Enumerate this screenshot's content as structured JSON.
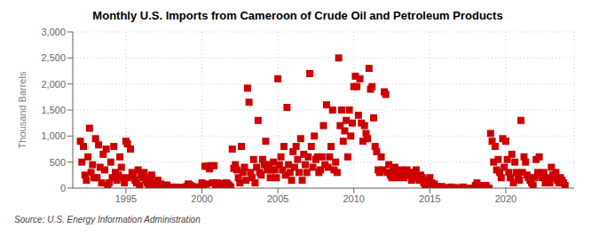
{
  "chart_data": {
    "type": "scatter",
    "title": "Monthly U.S. Imports from Cameroon of Crude Oil and Petroleum Products",
    "ylabel": "Thousand Barrels",
    "annotations": [
      "Source: U.S. Energy Information Administration"
    ],
    "color": "#CC0000",
    "marker": "square",
    "grid": true,
    "xlim": [
      1991.5,
      2024.5
    ],
    "xticks": [
      1995,
      2000,
      2005,
      2010,
      2015,
      2020
    ],
    "ylim": [
      0,
      3000
    ],
    "yticks": [
      0,
      500,
      {
        "value": 1000,
        "label": "1,000"
      },
      {
        "value": 1500,
        "label": "1,500"
      },
      {
        "value": 2000,
        "label": "2,000"
      },
      {
        "value": 2500,
        "label": "2,500"
      },
      {
        "value": 3000,
        "label": "3,000"
      }
    ],
    "x": [
      1992.0,
      1992.1,
      1992.2,
      1992.3,
      1992.4,
      1992.5,
      1992.6,
      1992.7,
      1992.8,
      1992.9,
      1993.0,
      1993.1,
      1993.2,
      1993.3,
      1993.4,
      1993.5,
      1993.6,
      1993.7,
      1993.8,
      1993.9,
      1994.0,
      1994.1,
      1994.2,
      1994.3,
      1994.4,
      1994.5,
      1994.6,
      1994.7,
      1994.8,
      1994.9,
      1995.0,
      1995.1,
      1995.2,
      1995.3,
      1995.4,
      1995.5,
      1995.6,
      1995.7,
      1995.8,
      1995.9,
      1996.0,
      1996.1,
      1996.2,
      1996.3,
      1996.4,
      1996.5,
      1996.6,
      1996.7,
      1996.8,
      1996.9,
      1997.0,
      1997.1,
      1997.2,
      1997.3,
      1997.4,
      1997.5,
      1997.6,
      1997.7,
      1997.8,
      1997.9,
      1998.0,
      1998.1,
      1998.2,
      1998.3,
      1998.4,
      1998.5,
      1998.6,
      1998.7,
      1998.8,
      1998.9,
      1999.0,
      1999.1,
      1999.2,
      1999.3,
      1999.4,
      1999.5,
      1999.6,
      1999.7,
      1999.8,
      1999.9,
      2000.0,
      2000.1,
      2000.2,
      2000.3,
      2000.4,
      2000.5,
      2000.6,
      2000.7,
      2000.8,
      2000.9,
      2001.0,
      2001.1,
      2001.2,
      2001.3,
      2001.4,
      2001.5,
      2001.6,
      2001.7,
      2001.8,
      2001.9,
      2002.0,
      2002.1,
      2002.2,
      2002.3,
      2002.4,
      2002.5,
      2002.6,
      2002.7,
      2002.8,
      2002.9,
      2003.0,
      2003.1,
      2003.2,
      2003.3,
      2003.4,
      2003.5,
      2003.6,
      2003.7,
      2003.8,
      2003.9,
      2004.0,
      2004.1,
      2004.2,
      2004.3,
      2004.4,
      2004.5,
      2004.6,
      2004.7,
      2004.8,
      2004.9,
      2005.0,
      2005.1,
      2005.2,
      2005.3,
      2005.4,
      2005.5,
      2005.6,
      2005.7,
      2005.8,
      2005.9,
      2006.0,
      2006.1,
      2006.2,
      2006.3,
      2006.4,
      2006.5,
      2006.6,
      2006.7,
      2006.8,
      2006.9,
      2007.0,
      2007.1,
      2007.2,
      2007.3,
      2007.4,
      2007.5,
      2007.6,
      2007.7,
      2007.8,
      2007.9,
      2008.0,
      2008.1,
      2008.2,
      2008.3,
      2008.4,
      2008.5,
      2008.6,
      2008.7,
      2008.8,
      2008.9,
      2009.0,
      2009.1,
      2009.2,
      2009.3,
      2009.4,
      2009.5,
      2009.6,
      2009.7,
      2009.8,
      2009.9,
      2010.0,
      2010.1,
      2010.2,
      2010.3,
      2010.4,
      2010.5,
      2010.6,
      2010.7,
      2010.8,
      2010.9,
      2011.0,
      2011.1,
      2011.2,
      2011.3,
      2011.4,
      2011.5,
      2011.6,
      2011.7,
      2011.8,
      2011.9,
      2012.0,
      2012.1,
      2012.2,
      2012.3,
      2012.4,
      2012.5,
      2012.6,
      2012.7,
      2012.8,
      2012.9,
      2013.0,
      2013.1,
      2013.2,
      2013.3,
      2013.4,
      2013.5,
      2013.6,
      2013.7,
      2013.8,
      2013.9,
      2014.0,
      2014.1,
      2014.2,
      2014.3,
      2014.4,
      2014.5,
      2014.6,
      2014.7,
      2014.8,
      2014.9,
      2015.0,
      2015.1,
      2015.2,
      2015.3,
      2015.4,
      2015.5,
      2015.6,
      2015.7,
      2015.8,
      2015.9,
      2016.0,
      2016.1,
      2016.2,
      2016.3,
      2016.4,
      2016.5,
      2016.6,
      2016.7,
      2016.8,
      2016.9,
      2017.0,
      2017.1,
      2017.2,
      2017.3,
      2017.4,
      2017.5,
      2017.6,
      2017.7,
      2017.8,
      2017.9,
      2018.0,
      2018.1,
      2018.2,
      2018.3,
      2018.4,
      2018.5,
      2018.6,
      2018.7,
      2018.8,
      2018.9,
      2019.0,
      2019.1,
      2019.2,
      2019.3,
      2019.4,
      2019.5,
      2019.6,
      2019.7,
      2019.8,
      2019.9,
      2020.0,
      2020.1,
      2020.2,
      2020.3,
      2020.4,
      2020.5,
      2020.6,
      2020.7,
      2020.8,
      2020.9,
      2021.0,
      2021.1,
      2021.2,
      2021.3,
      2021.4,
      2021.5,
      2021.6,
      2021.7,
      2021.8,
      2021.9,
      2022.0,
      2022.1,
      2022.2,
      2022.3,
      2022.4,
      2022.5,
      2022.6,
      2022.7,
      2022.8,
      2022.9,
      2023.0,
      2023.1,
      2023.2,
      2023.3,
      2023.4,
      2023.5,
      2023.6,
      2023.7,
      2023.8,
      2023.9
    ],
    "values": [
      900,
      500,
      800,
      250,
      150,
      600,
      1150,
      300,
      450,
      200,
      950,
      200,
      830,
      400,
      100,
      650,
      350,
      750,
      50,
      100,
      500,
      200,
      800,
      300,
      150,
      250,
      600,
      400,
      200,
      100,
      900,
      850,
      200,
      750,
      300,
      250,
      150,
      100,
      350,
      50,
      250,
      200,
      300,
      150,
      100,
      50,
      200,
      250,
      100,
      50,
      100,
      150,
      50,
      80,
      20,
      10,
      30,
      60,
      20,
      5,
      10,
      5,
      20,
      15,
      8,
      12,
      5,
      3,
      8,
      5,
      30,
      80,
      60,
      40,
      20,
      15,
      25,
      10,
      5,
      8,
      100,
      50,
      420,
      80,
      420,
      370,
      430,
      100,
      430,
      50,
      100,
      80,
      50,
      90,
      10,
      30,
      100,
      80,
      50,
      20,
      750,
      380,
      450,
      350,
      200,
      100,
      800,
      300,
      400,
      150,
      1920,
      1650,
      300,
      200,
      550,
      100,
      400,
      1300,
      300,
      250,
      550,
      450,
      900,
      350,
      450,
      200,
      350,
      500,
      350,
      200,
      2100,
      450,
      600,
      350,
      800,
      250,
      1550,
      450,
      300,
      150,
      700,
      400,
      800,
      550,
      300,
      950,
      150,
      650,
      450,
      300,
      600,
      2200,
      800,
      400,
      1000,
      550,
      600,
      300,
      350,
      600,
      1200,
      450,
      1600,
      400,
      600,
      800,
      1500,
      350,
      500,
      300,
      2500,
      1200,
      1500,
      900,
      1100,
      1300,
      600,
      1500,
      1000,
      1250,
      1950,
      2150,
      1950,
      1400,
      2100,
      1250,
      900,
      1200,
      1050,
      950,
      2300,
      1900,
      1950,
      1350,
      800,
      700,
      350,
      300,
      600,
      350,
      1850,
      1800,
      300,
      450,
      250,
      200,
      350,
      400,
      300,
      200,
      300,
      350,
      250,
      200,
      280,
      350,
      250,
      300,
      150,
      200,
      300,
      350,
      200,
      150,
      250,
      200,
      100,
      50,
      150,
      80,
      200,
      100,
      50,
      80,
      30,
      0,
      20,
      10,
      30,
      0,
      0,
      0,
      10,
      0,
      20,
      0,
      0,
      10,
      0,
      0,
      0,
      0,
      20,
      0,
      0,
      0,
      0,
      0,
      0,
      0,
      50,
      100,
      0,
      50,
      0,
      0,
      0,
      50,
      0,
      0,
      1050,
      900,
      500,
      800,
      350,
      550,
      300,
      200,
      950,
      400,
      900,
      550,
      300,
      200,
      650,
      100,
      500,
      300,
      200,
      150,
      1300,
      300,
      600,
      500,
      250,
      200,
      150,
      100,
      50,
      200,
      550,
      300,
      600,
      250,
      200,
      300,
      100,
      150,
      200,
      100,
      400,
      250,
      200,
      300,
      150,
      100,
      200,
      150,
      100,
      50
    ]
  }
}
